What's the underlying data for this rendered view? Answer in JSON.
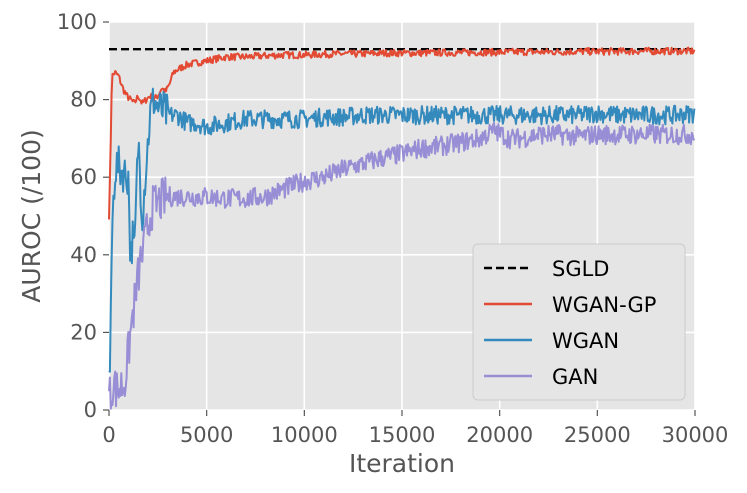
{
  "chart_data": {
    "type": "line",
    "title": "",
    "xlabel": "Iteration",
    "ylabel": "AUROC (/100)",
    "xlim": [
      0,
      30000
    ],
    "ylim": [
      0,
      100
    ],
    "x_ticks": [
      0,
      5000,
      10000,
      15000,
      20000,
      25000,
      30000
    ],
    "y_ticks": [
      0,
      20,
      40,
      60,
      80,
      100
    ],
    "grid": true,
    "legend_position": "lower-right",
    "series": [
      {
        "name": "SGLD",
        "color": "#000000",
        "style": "dashed",
        "x": [
          0,
          30000
        ],
        "y": [
          93,
          93
        ]
      },
      {
        "name": "WGAN-GP",
        "color": "#E24A33",
        "style": "solid",
        "x": [
          0,
          50,
          150,
          300,
          500,
          700,
          900,
          1100,
          1300,
          1500,
          1700,
          1900,
          2100,
          2300,
          2500,
          2700,
          2900,
          3100,
          3300,
          3600,
          4000,
          4500,
          5000,
          5500,
          6000,
          7000,
          8000,
          9000,
          10000,
          11000,
          12000,
          13000,
          14000,
          15000,
          16000,
          17000,
          18000,
          19000,
          20000,
          21000,
          22000,
          23000,
          24000,
          25000,
          26000,
          27000,
          28000,
          29000,
          30000
        ],
        "y": [
          50,
          60,
          86,
          87,
          86,
          83,
          81,
          80,
          79,
          81,
          79,
          80,
          81,
          80,
          81,
          83,
          82,
          84,
          87,
          88,
          89,
          89.5,
          90,
          90.5,
          91,
          91,
          91.3,
          91.5,
          91.5,
          91.7,
          91.8,
          91.8,
          92,
          92,
          92,
          92.1,
          92.1,
          92.2,
          92.2,
          92.3,
          92.3,
          92.3,
          92.4,
          92.4,
          92.4,
          92.5,
          92.5,
          92.5,
          92.5
        ]
      },
      {
        "name": "WGAN",
        "color": "#348ABD",
        "style": "solid",
        "x": [
          0,
          60,
          150,
          300,
          450,
          600,
          800,
          1000,
          1100,
          1200,
          1300,
          1500,
          1700,
          1900,
          2100,
          2300,
          2500,
          2800,
          3100,
          3500,
          4000,
          4500,
          5000,
          6000,
          7000,
          8000,
          9000,
          10000,
          11000,
          12000,
          13000,
          14000,
          15000,
          16000,
          17000,
          18000,
          19000,
          20000,
          21000,
          22000,
          23000,
          24000,
          25000,
          26000,
          27000,
          28000,
          29000,
          30000
        ],
        "y": [
          11,
          10,
          45,
          62,
          63,
          62,
          61,
          60,
          38,
          45,
          40,
          70,
          50,
          63,
          76,
          80,
          78,
          77,
          76,
          76,
          74,
          74,
          73,
          74,
          75,
          75,
          75,
          75,
          75.5,
          75.5,
          76,
          76,
          76,
          76,
          76,
          76,
          76,
          76,
          76,
          76,
          76,
          76,
          76.5,
          76,
          76,
          76,
          76,
          76.5
        ]
      },
      {
        "name": "GAN",
        "color": "#988ED5",
        "style": "solid",
        "x": [
          0,
          100,
          200,
          400,
          600,
          800,
          1000,
          1200,
          1400,
          1600,
          1800,
          2000,
          2200,
          2400,
          2700,
          3000,
          3500,
          4000,
          5000,
          6000,
          7000,
          8000,
          9000,
          10000,
          11000,
          12000,
          13000,
          14000,
          15000,
          16000,
          17000,
          18000,
          19000,
          19700,
          20500,
          21000,
          22000,
          23000,
          24000,
          25000,
          26000,
          27000,
          28000,
          29000,
          30000
        ],
        "y": [
          5,
          2,
          8,
          5,
          6,
          7,
          15,
          24,
          31,
          38,
          42,
          48,
          52,
          53,
          54,
          55,
          55,
          55,
          55,
          54.5,
          54.5,
          55,
          57,
          59,
          60,
          62,
          63.5,
          65,
          66,
          67.5,
          68,
          69,
          70,
          72,
          70,
          70,
          71,
          71,
          70.5,
          71,
          71,
          71,
          71,
          71,
          71
        ]
      }
    ]
  }
}
